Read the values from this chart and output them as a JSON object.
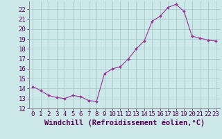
{
  "x": [
    0,
    1,
    2,
    3,
    4,
    5,
    6,
    7,
    8,
    9,
    10,
    11,
    12,
    13,
    14,
    15,
    16,
    17,
    18,
    19,
    20,
    21,
    22,
    23
  ],
  "y": [
    14.2,
    13.8,
    13.3,
    13.1,
    13.0,
    13.3,
    13.2,
    12.8,
    12.7,
    15.5,
    16.0,
    16.2,
    17.0,
    18.0,
    18.8,
    20.8,
    21.3,
    22.2,
    22.5,
    21.8,
    19.3,
    19.1,
    18.9,
    18.8
  ],
  "line_color": "#993399",
  "marker_color": "#993399",
  "bg_color": "#cce8e8",
  "grid_color": "#aacccc",
  "xlabel": "Windchill (Refroidissement éolien,°C)",
  "xlim": [
    -0.5,
    23.5
  ],
  "ylim": [
    12,
    22.8
  ],
  "yticks": [
    12,
    13,
    14,
    15,
    16,
    17,
    18,
    19,
    20,
    21,
    22
  ],
  "xticks": [
    0,
    1,
    2,
    3,
    4,
    5,
    6,
    7,
    8,
    9,
    10,
    11,
    12,
    13,
    14,
    15,
    16,
    17,
    18,
    19,
    20,
    21,
    22,
    23
  ],
  "xlabel_fontsize": 7.5,
  "tick_fontsize": 6.5
}
